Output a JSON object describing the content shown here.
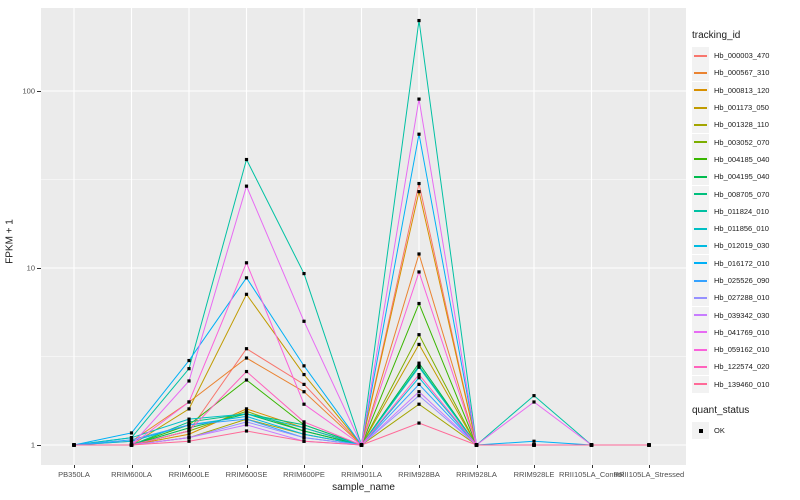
{
  "chart_data": {
    "type": "line",
    "xlabel": "sample_name",
    "ylabel": "FPKM + 1",
    "y_scale": "log10",
    "y_ticks": [
      1,
      10,
      100
    ],
    "y_tick_labels": [
      "1",
      "10",
      "100"
    ],
    "y_minor_ticks": [
      3.162,
      31.62
    ],
    "grid": true,
    "legend_position": "right",
    "marker": {
      "shape": "square",
      "color": "#000000",
      "size": 3.2
    },
    "categories": [
      "PB350LA",
      "RRIM600LA",
      "RRIM600LE",
      "RRIM600SE",
      "RRIM600PE",
      "RRIM901LA",
      "RRIM928BA",
      "RRIM928LA",
      "RRIM928LE",
      "RRII105LA_Control",
      "RRII105LA_Stressed"
    ],
    "series": [
      {
        "name": "Hb_000003_470",
        "color": "#F8766D",
        "values": [
          1,
          1,
          1.2,
          3.5,
          2.2,
          1,
          30,
          1,
          1,
          1,
          1
        ]
      },
      {
        "name": "Hb_000567_310",
        "color": "#EA8331",
        "values": [
          1,
          1.05,
          1.75,
          3.1,
          2.0,
          1,
          12,
          1,
          1,
          1,
          1
        ]
      },
      {
        "name": "Hb_000813_120",
        "color": "#D89000",
        "values": [
          1,
          1,
          1.15,
          1.6,
          1.25,
          1,
          27,
          1,
          1,
          1,
          1
        ]
      },
      {
        "name": "Hb_001173_050",
        "color": "#C09B00",
        "values": [
          1,
          1,
          1.6,
          7.1,
          2.5,
          1,
          3.7,
          1,
          1,
          1,
          1
        ]
      },
      {
        "name": "Hb_001328_110",
        "color": "#A3A500",
        "values": [
          1,
          1,
          1.1,
          1.4,
          1.15,
          1,
          1.7,
          1,
          1,
          1,
          1
        ]
      },
      {
        "name": "Hb_003052_070",
        "color": "#7CAE00",
        "values": [
          1,
          1,
          1.2,
          1.55,
          1.2,
          1,
          4.2,
          1,
          1,
          1,
          1
        ]
      },
      {
        "name": "Hb_004185_040",
        "color": "#39B600",
        "values": [
          1,
          1,
          1.3,
          2.33,
          1.3,
          1,
          6.3,
          1,
          1,
          1,
          1
        ]
      },
      {
        "name": "Hb_004195_040",
        "color": "#00BB4E",
        "values": [
          1,
          1,
          1.25,
          1.5,
          1.2,
          1,
          2.9,
          1,
          1,
          1,
          1
        ]
      },
      {
        "name": "Hb_008705_070",
        "color": "#00BF7D",
        "values": [
          1,
          1,
          1.35,
          1.5,
          1.3,
          1,
          2.8,
          1,
          1,
          1,
          1
        ]
      },
      {
        "name": "Hb_011824_010",
        "color": "#00C1A3",
        "values": [
          1,
          1.1,
          2.7,
          41,
          9.3,
          1,
          250,
          1,
          1.9,
          1,
          1
        ]
      },
      {
        "name": "Hb_011856_010",
        "color": "#00BFC4",
        "values": [
          1,
          1.1,
          1.4,
          1.5,
          1.25,
          1,
          2.75,
          1,
          1,
          1,
          1
        ]
      },
      {
        "name": "Hb_012019_030",
        "color": "#00BAE0",
        "values": [
          1,
          1.05,
          1.3,
          1.45,
          1.15,
          1,
          2.4,
          1,
          1,
          1,
          1
        ]
      },
      {
        "name": "Hb_016172_010",
        "color": "#00B0F6",
        "values": [
          1,
          1.17,
          3.0,
          8.8,
          2.8,
          1,
          57,
          1,
          1.05,
          1,
          1
        ]
      },
      {
        "name": "Hb_025526_090",
        "color": "#35A2FF",
        "values": [
          1,
          1.07,
          1.3,
          1.4,
          1.1,
          1,
          2.2,
          1,
          1,
          1,
          1
        ]
      },
      {
        "name": "Hb_027288_010",
        "color": "#9590FF",
        "values": [
          1,
          1,
          1.1,
          1.35,
          1.1,
          1,
          1.9,
          1,
          1,
          1,
          1
        ]
      },
      {
        "name": "Hb_039342_030",
        "color": "#C77CFF",
        "values": [
          1,
          1,
          1.1,
          1.3,
          1.05,
          1,
          2.0,
          1,
          1,
          1,
          1
        ]
      },
      {
        "name": "Hb_041769_010",
        "color": "#E76BF3",
        "values": [
          1,
          1,
          2.3,
          29,
          5.0,
          1,
          90,
          1,
          1.75,
          1,
          1
        ]
      },
      {
        "name": "Hb_059162_010",
        "color": "#FA62DB",
        "values": [
          1,
          1,
          1.75,
          10.7,
          1.7,
          1,
          9.5,
          1,
          1,
          1,
          1
        ]
      },
      {
        "name": "Hb_122574_020",
        "color": "#FF62BC",
        "values": [
          1,
          1,
          1.2,
          2.6,
          1.35,
          1,
          2.5,
          1,
          1,
          1,
          1
        ]
      },
      {
        "name": "Hb_139460_010",
        "color": "#FF6A98",
        "values": [
          1,
          1,
          1.05,
          1.2,
          1.05,
          1,
          1.33,
          1,
          1,
          1,
          1
        ]
      }
    ]
  },
  "legend": {
    "tracking_title": "tracking_id",
    "quant_title": "quant_status",
    "quant_items": [
      {
        "label": "OK",
        "marker": "square",
        "color": "#000000"
      }
    ]
  },
  "colors": {
    "panel_bg": "#EBEBEB",
    "grid": "#FFFFFF",
    "axis_text": "#4D4D4D",
    "text": "#1A1A1A",
    "legend_key_bg": "#F2F2F2",
    "page_bg": "#FFFFFF"
  }
}
